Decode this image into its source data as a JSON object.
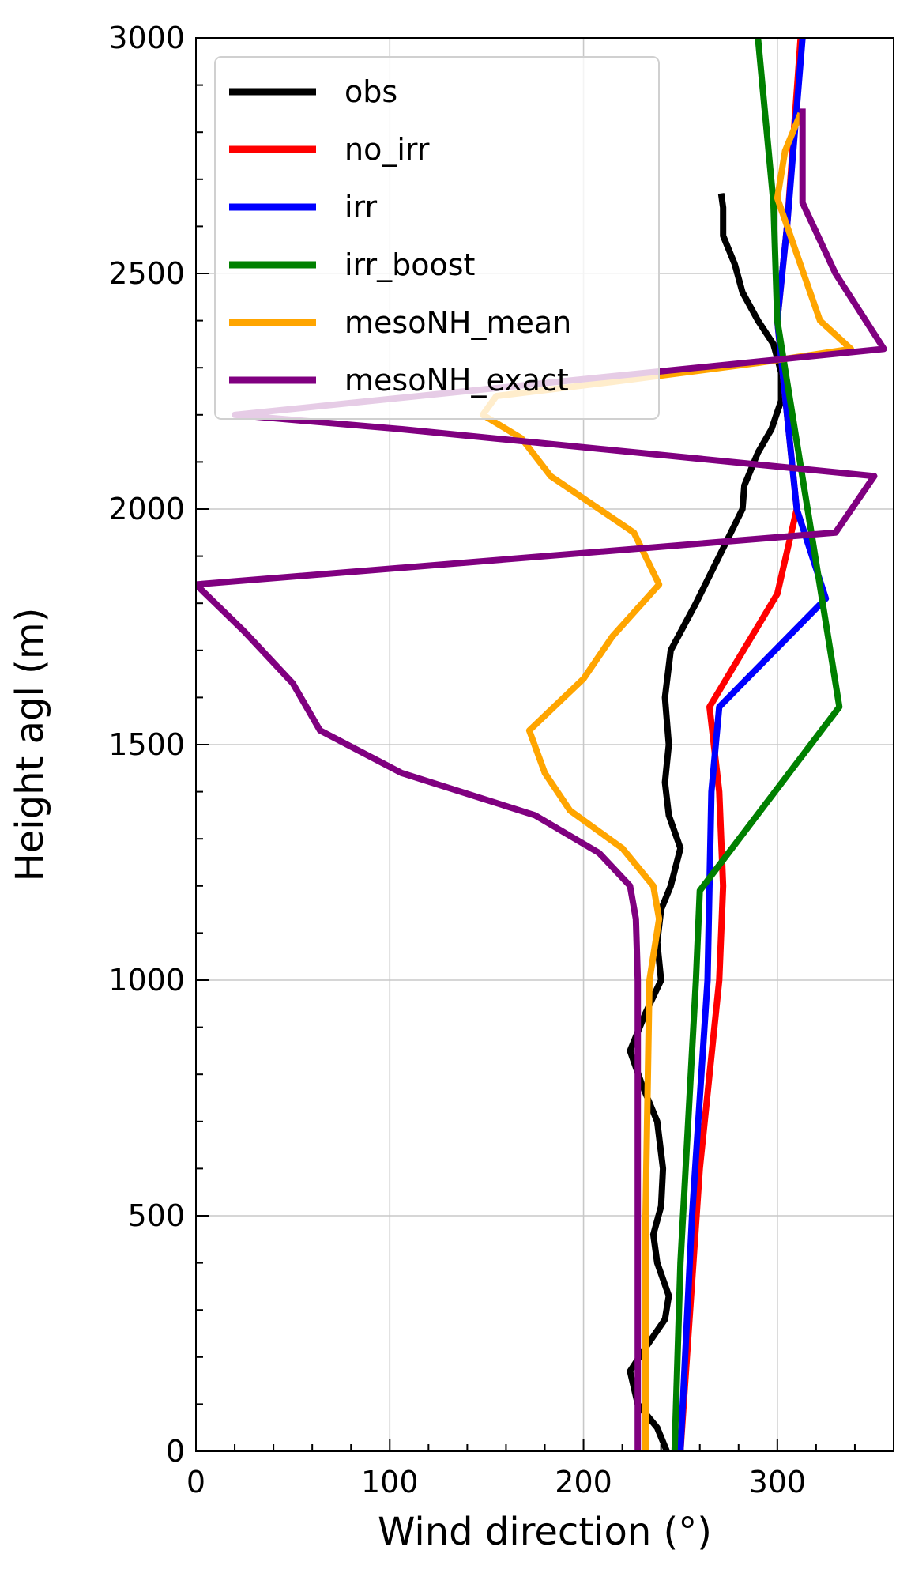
{
  "chart_data": {
    "type": "line",
    "xlabel": "Wind direction (°)",
    "ylabel": "Height agl (m)",
    "xlim": [
      0,
      360
    ],
    "ylim": [
      0,
      3000
    ],
    "xticks": [
      0,
      100,
      200,
      300
    ],
    "yticks": [
      0,
      500,
      1000,
      1500,
      2000,
      2500,
      3000
    ],
    "grid": true,
    "legend_position": "top-left",
    "series": [
      {
        "name": "obs",
        "color": "#000000",
        "points": [
          [
            243,
            0
          ],
          [
            238,
            50
          ],
          [
            228,
            100
          ],
          [
            224,
            170
          ],
          [
            232,
            220
          ],
          [
            242,
            280
          ],
          [
            244,
            330
          ],
          [
            238,
            400
          ],
          [
            236,
            460
          ],
          [
            240,
            520
          ],
          [
            241,
            600
          ],
          [
            238,
            700
          ],
          [
            230,
            780
          ],
          [
            224,
            850
          ],
          [
            232,
            930
          ],
          [
            240,
            1000
          ],
          [
            238,
            1080
          ],
          [
            240,
            1150
          ],
          [
            245,
            1200
          ],
          [
            250,
            1280
          ],
          [
            244,
            1350
          ],
          [
            242,
            1420
          ],
          [
            244,
            1500
          ],
          [
            242,
            1600
          ],
          [
            245,
            1700
          ],
          [
            258,
            1800
          ],
          [
            270,
            1900
          ],
          [
            282,
            2000
          ],
          [
            283,
            2050
          ],
          [
            290,
            2120
          ],
          [
            297,
            2170
          ],
          [
            302,
            2230
          ],
          [
            302,
            2290
          ],
          [
            298,
            2350
          ],
          [
            290,
            2400
          ],
          [
            282,
            2460
          ],
          [
            278,
            2520
          ],
          [
            272,
            2580
          ],
          [
            272,
            2640
          ],
          [
            271,
            2670
          ]
        ]
      },
      {
        "name": "no_irr",
        "color": "#ff0000",
        "points": [
          [
            250,
            0
          ],
          [
            260,
            600
          ],
          [
            270,
            1000
          ],
          [
            272,
            1200
          ],
          [
            270,
            1400
          ],
          [
            265,
            1580
          ],
          [
            300,
            1820
          ],
          [
            310,
            2000
          ],
          [
            300,
            2400
          ],
          [
            305,
            2600
          ],
          [
            312,
            3000
          ]
        ]
      },
      {
        "name": "irr",
        "color": "#0000ff",
        "points": [
          [
            250,
            0
          ],
          [
            256,
            500
          ],
          [
            264,
            1000
          ],
          [
            266,
            1400
          ],
          [
            270,
            1580
          ],
          [
            325,
            1810
          ],
          [
            310,
            2000
          ],
          [
            300,
            2400
          ],
          [
            305,
            2600
          ],
          [
            313,
            3000
          ]
        ]
      },
      {
        "name": "irr_boost",
        "color": "#008000",
        "points": [
          [
            247,
            0
          ],
          [
            250,
            400
          ],
          [
            258,
            1000
          ],
          [
            260,
            1190
          ],
          [
            332,
            1580
          ],
          [
            300,
            2400
          ],
          [
            298,
            2650
          ],
          [
            290,
            3000
          ]
        ]
      },
      {
        "name": "mesoNH_mean",
        "color": "#ffa500",
        "points": [
          [
            232,
            0
          ],
          [
            232,
            500
          ],
          [
            234,
            1000
          ],
          [
            239,
            1130
          ],
          [
            236,
            1200
          ],
          [
            220,
            1280
          ],
          [
            193,
            1360
          ],
          [
            180,
            1440
          ],
          [
            172,
            1530
          ],
          [
            200,
            1640
          ],
          [
            215,
            1730
          ],
          [
            239,
            1840
          ],
          [
            226,
            1950
          ],
          [
            183,
            2070
          ],
          [
            168,
            2150
          ],
          [
            148,
            2200
          ],
          [
            155,
            2240
          ],
          [
            215,
            2270
          ],
          [
            290,
            2310
          ],
          [
            338,
            2340
          ],
          [
            322,
            2400
          ],
          [
            300,
            2660
          ],
          [
            304,
            2760
          ],
          [
            312,
            2840
          ]
        ]
      },
      {
        "name": "mesoNH_exact",
        "color": "#800080",
        "points": [
          [
            228,
            0
          ],
          [
            228,
            500
          ],
          [
            228,
            1000
          ],
          [
            227,
            1130
          ],
          [
            224,
            1200
          ],
          [
            208,
            1270
          ],
          [
            175,
            1350
          ],
          [
            106,
            1440
          ],
          [
            64,
            1530
          ],
          [
            50,
            1630
          ],
          [
            25,
            1740
          ],
          [
            0,
            1840
          ],
          [
            330,
            1950
          ],
          [
            350,
            2070
          ],
          [
            105,
            2170
          ],
          [
            20,
            2200
          ],
          [
            210,
            2280
          ],
          [
            355,
            2340
          ],
          [
            330,
            2500
          ],
          [
            313,
            2650
          ],
          [
            313,
            2850
          ]
        ]
      }
    ]
  }
}
